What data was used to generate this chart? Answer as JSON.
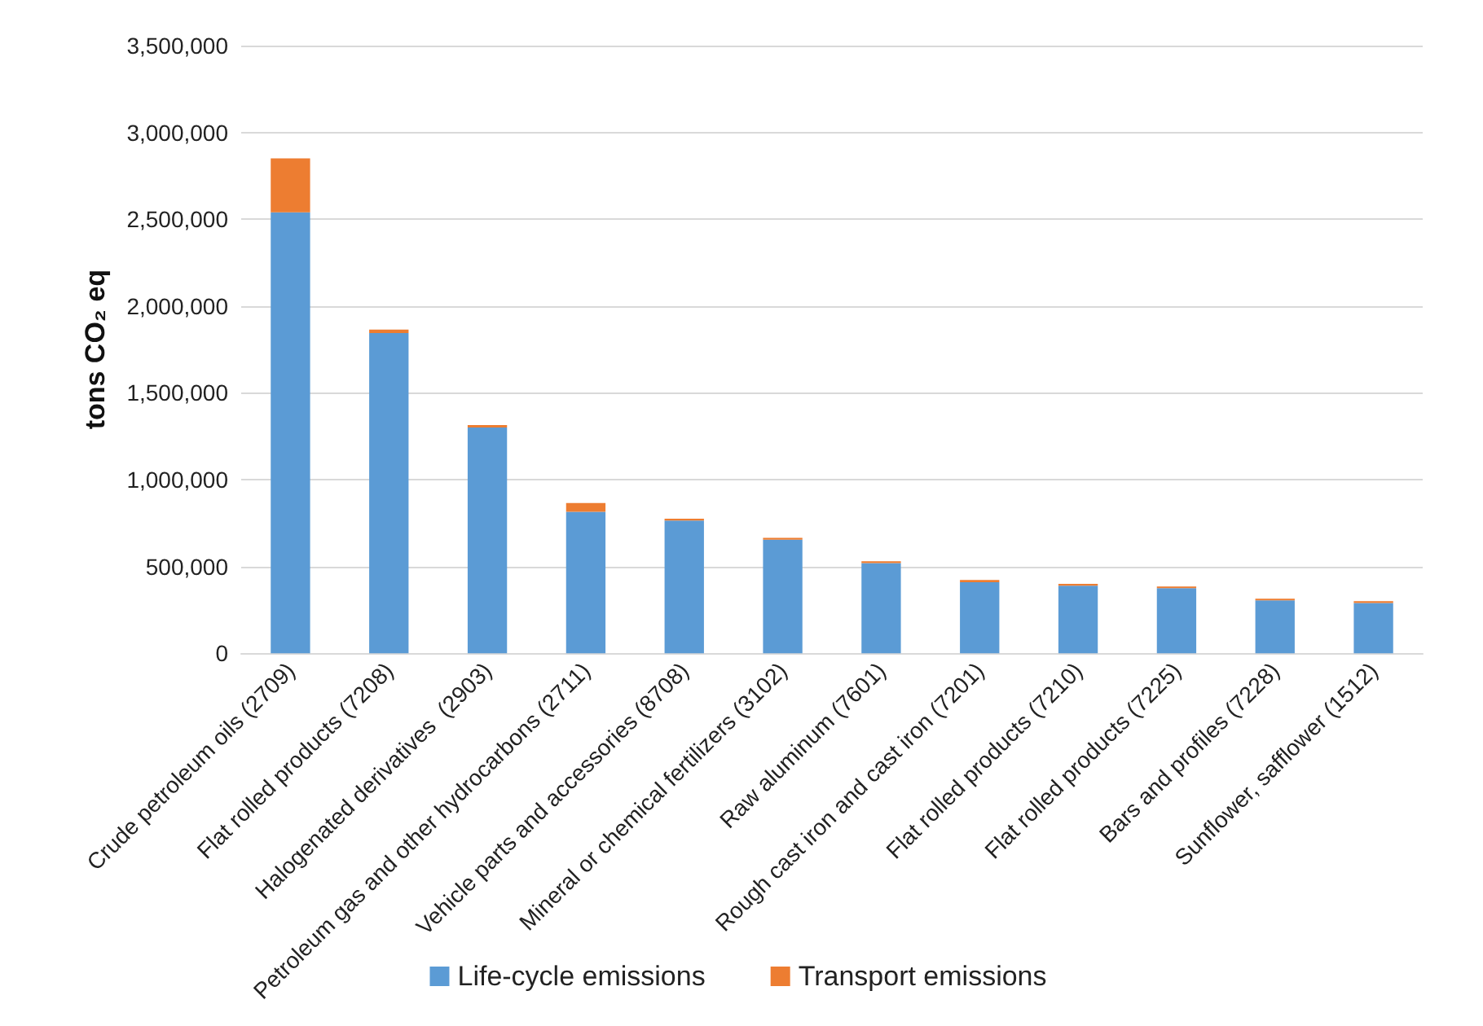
{
  "chart_data": {
    "type": "bar",
    "stacked": true,
    "ylabel": "tons CO₂ eq",
    "categories": [
      "Crude petroleum oils (2709)",
      "Flat rolled products (7208)",
      "Halogenated derivatives  (2903)",
      "Petroleum gas and other hydrocarbons (2711)",
      "Vehicle parts and accessories (8708)",
      "Mineral or chemical fertilizers (3102)",
      "Raw aluminum (7601)",
      "Rough cast iron and cast iron (7201)",
      "Flat rolled products (7210)",
      "Flat rolled products (7225)",
      "Bars and profiles (7228)",
      "Sunflower, safflower (1512)"
    ],
    "series": [
      {
        "name": "Life-cycle emissions",
        "color": "#5b9bd5",
        "values": [
          2540000,
          1845000,
          1300000,
          815000,
          765000,
          655000,
          520000,
          410000,
          390000,
          375000,
          305000,
          290000
        ]
      },
      {
        "name": "Transport emissions",
        "color": "#ed7d31",
        "values": [
          310000,
          20000,
          15000,
          50000,
          10000,
          10000,
          10000,
          12000,
          10000,
          10000,
          10000,
          10000
        ]
      }
    ],
    "ylim": [
      0,
      3500000
    ],
    "yticks": [
      {
        "value": 0,
        "label": "0"
      },
      {
        "value": 500000,
        "label": "500,000"
      },
      {
        "value": 1000000,
        "label": "1,000,000"
      },
      {
        "value": 1500000,
        "label": "1,500,000"
      },
      {
        "value": 2000000,
        "label": "2,000,000"
      },
      {
        "value": 2500000,
        "label": "2,500,000"
      },
      {
        "value": 3000000,
        "label": "3,000,000"
      },
      {
        "value": 3500000,
        "label": "3,500,000"
      }
    ],
    "grid": "y",
    "legend": "bottom"
  }
}
